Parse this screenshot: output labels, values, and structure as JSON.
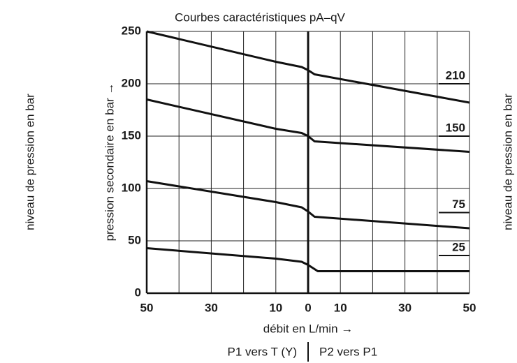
{
  "chart_data": {
    "type": "line",
    "title": "Courbes caractéristiques pA–qV",
    "xlabel": "débit en L/min →",
    "ylabel": "pression secondaire en bar →",
    "side_label_left": "niveau de pression en bar",
    "side_label_right": "niveau de pression en bar",
    "footer_left": "P1 vers T (Y)",
    "footer_right": "P2 vers P1",
    "xlim": [
      -50,
      50
    ],
    "xticks": [
      {
        "value": -50,
        "label": "50"
      },
      {
        "value": -30,
        "label": "30"
      },
      {
        "value": -10,
        "label": "10"
      },
      0,
      10,
      30,
      50
    ],
    "xgrid": [
      -50,
      -40,
      -30,
      -20,
      -10,
      0,
      10,
      20,
      30,
      40,
      50
    ],
    "ylim": [
      0,
      250
    ],
    "yticks": [
      0,
      50,
      100,
      150,
      200,
      250
    ],
    "grid": true,
    "series": [
      {
        "name": "210",
        "color": "#111111",
        "x": [
          -50,
          -10,
          -2,
          0,
          2,
          50
        ],
        "values": [
          250,
          221,
          216,
          213,
          209,
          182
        ]
      },
      {
        "name": "150",
        "color": "#111111",
        "x": [
          -50,
          -10,
          -2,
          0,
          2,
          50
        ],
        "values": [
          185,
          157,
          153,
          150,
          145,
          135
        ]
      },
      {
        "name": "75",
        "color": "#111111",
        "x": [
          -50,
          -10,
          -2,
          0,
          2,
          50
        ],
        "values": [
          107,
          87,
          82,
          78,
          73,
          62
        ]
      },
      {
        "name": "25",
        "color": "#111111",
        "x": [
          -50,
          -10,
          -2,
          0,
          3,
          50
        ],
        "values": [
          43,
          33,
          30,
          27,
          21,
          21
        ]
      }
    ]
  }
}
